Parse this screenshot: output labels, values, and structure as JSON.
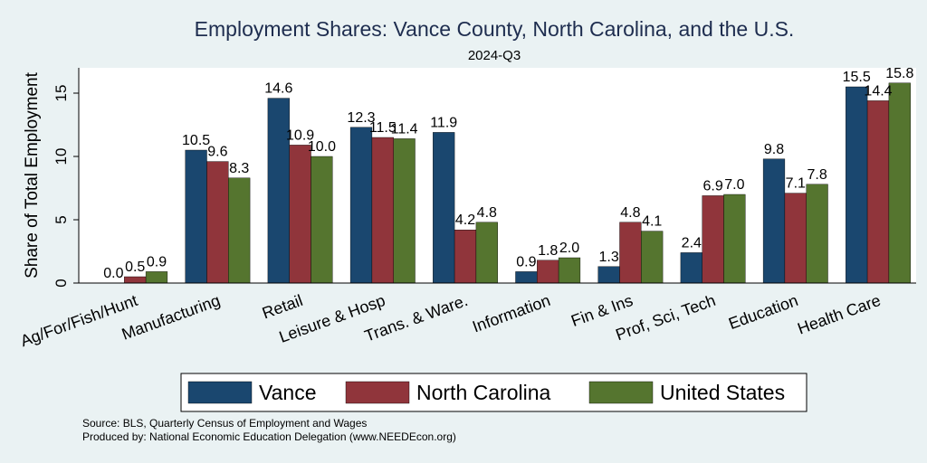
{
  "chart_data": {
    "type": "bar",
    "title": "Employment Shares: Vance County, North Carolina, and the U.S.",
    "subtitle": "2024-Q3",
    "ylabel": "Share of Total Employment",
    "xlabel": "",
    "ylim": [
      0,
      17
    ],
    "yticks": [
      0,
      5,
      10,
      15
    ],
    "grid": false,
    "legend_position": "bottom",
    "categories": [
      "Ag/For/Fish/Hunt",
      "Manufacturing",
      "Retail",
      "Leisure & Hosp",
      "Trans. & Ware.",
      "Information",
      "Fin & Ins",
      "Prof, Sci, Tech",
      "Education",
      "Health Care"
    ],
    "series": [
      {
        "name": "Vance",
        "color": "#1a476f",
        "values": [
          0.0,
          10.5,
          14.6,
          12.3,
          11.9,
          0.9,
          1.3,
          2.4,
          9.8,
          15.5
        ],
        "labels": [
          "0.0",
          "10.5",
          "14.6",
          "12.3",
          "11.9",
          "0.9",
          "1.3",
          "2.4",
          "9.8",
          "15.5"
        ]
      },
      {
        "name": "North Carolina",
        "color": "#90353b",
        "values": [
          0.5,
          9.6,
          10.9,
          11.5,
          4.2,
          1.8,
          4.8,
          6.9,
          7.1,
          14.4
        ],
        "labels": [
          "0.5",
          "9.6",
          "10.9",
          "11.5",
          "4.2",
          "1.8",
          "4.8",
          "6.9",
          "7.1",
          "14.4"
        ]
      },
      {
        "name": "United States",
        "color": "#55752f",
        "values": [
          0.9,
          8.3,
          10.0,
          11.4,
          4.8,
          2.0,
          4.1,
          7.0,
          7.8,
          15.8
        ],
        "labels": [
          "0.9",
          "8.3",
          "10.0",
          "11.4",
          "4.8",
          "2.0",
          "4.1",
          "7.0",
          "7.8",
          "15.8"
        ]
      }
    ],
    "notes": [
      "Source: BLS, Quarterly Census of Employment and Wages",
      "Produced by: National Economic Education Delegation (www.NEEDEcon.org)"
    ]
  }
}
